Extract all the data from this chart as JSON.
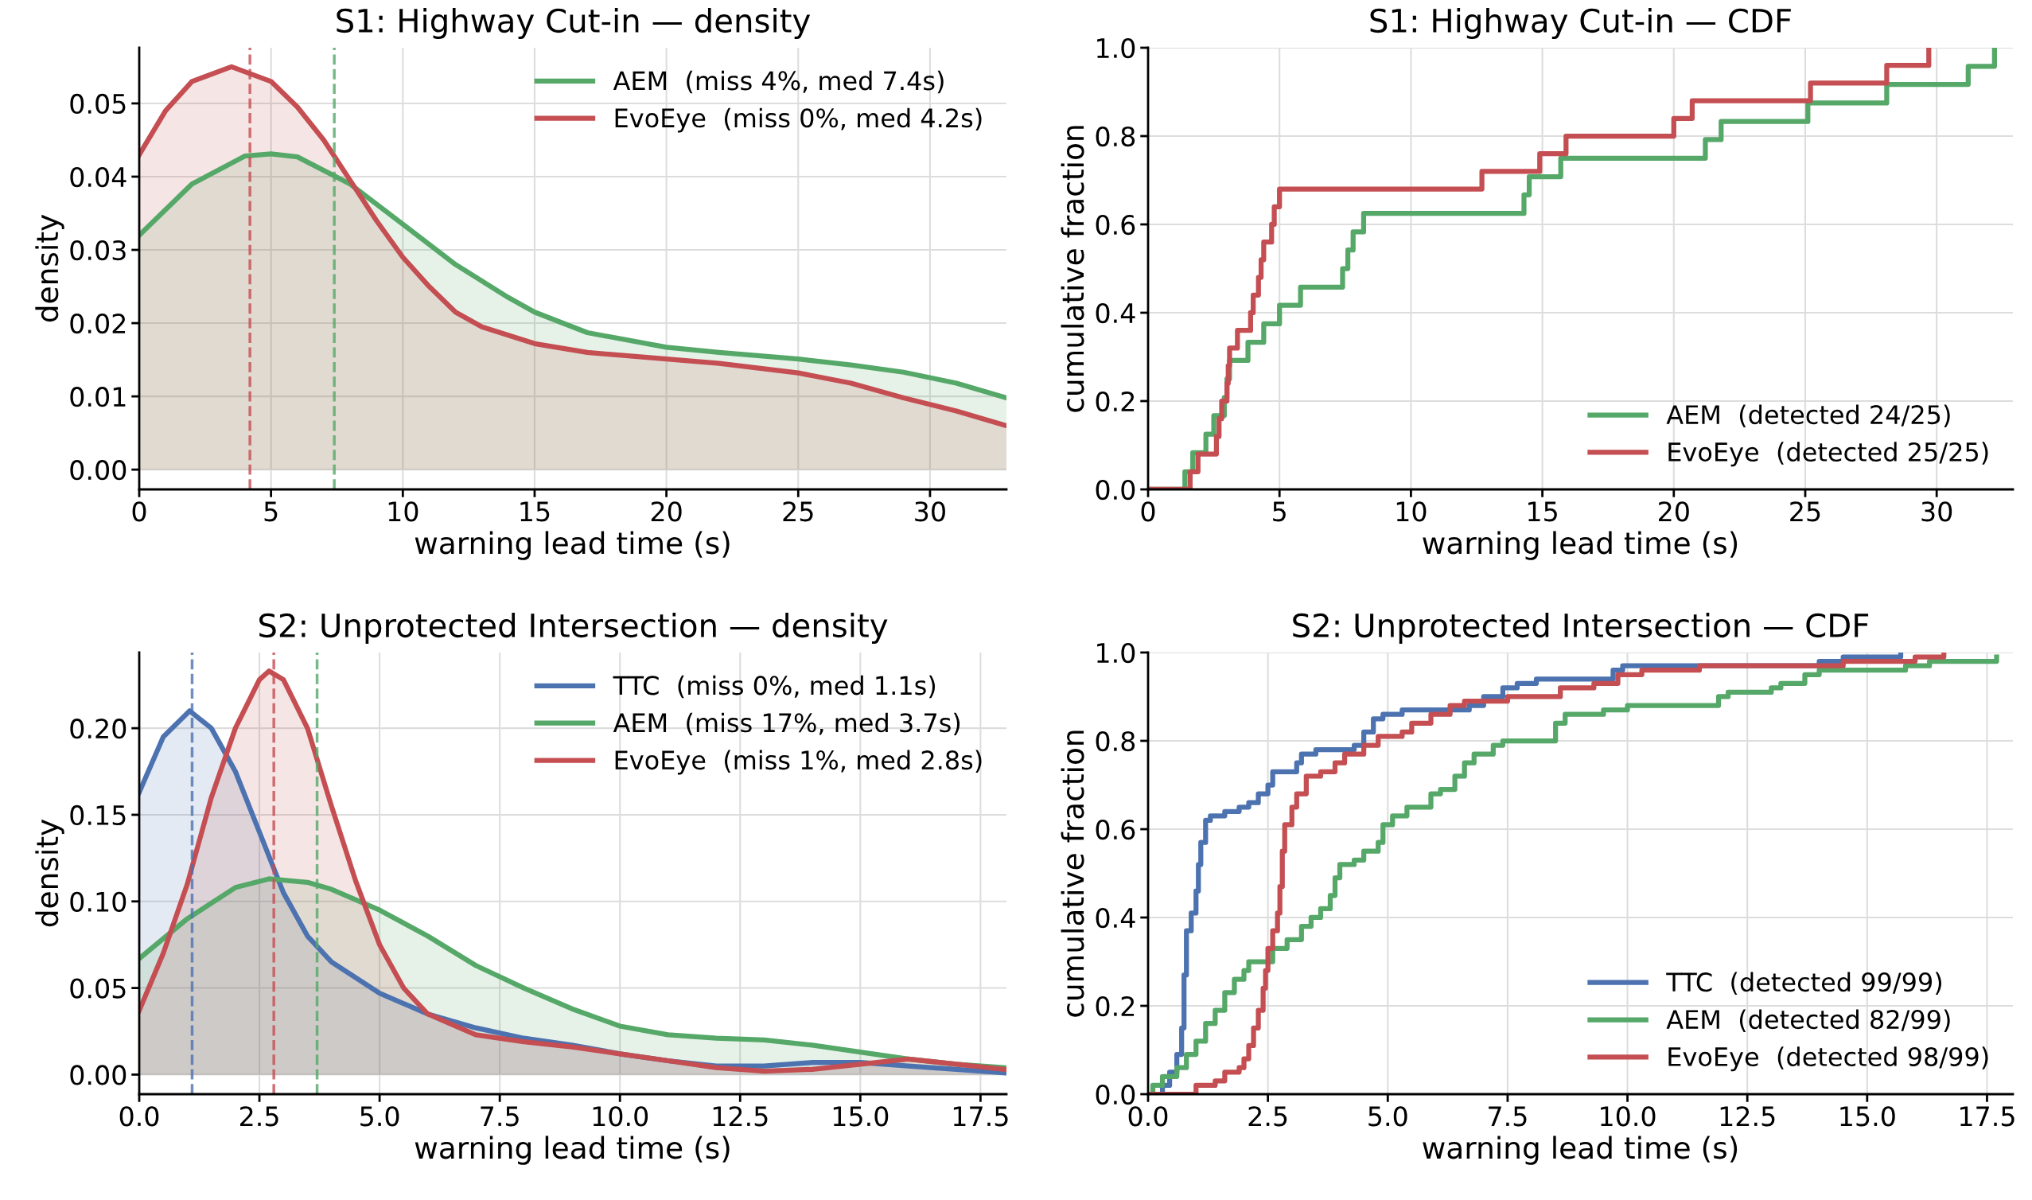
{
  "chart_data": [
    {
      "type": "area",
      "title": "S1: Highway Cut-in — density",
      "xlabel": "warning lead time (s)",
      "ylabel": "density",
      "xlim": [
        0,
        32.9
      ],
      "ylim": [
        -0.0027,
        0.0576
      ],
      "xticks": [
        0,
        5,
        10,
        15,
        20,
        25,
        30
      ],
      "yticks": [
        {
          "value": 0,
          "label": "0.00"
        },
        {
          "value": 0.01,
          "label": "0.01"
        },
        {
          "value": 0.02,
          "label": "0.02"
        },
        {
          "value": 0.03,
          "label": "0.03"
        },
        {
          "value": 0.04,
          "label": "0.04"
        },
        {
          "value": 0.05,
          "label": "0.05"
        }
      ],
      "grid": true,
      "legend": "top right",
      "series": [
        {
          "name": "AEM  (miss 4%, med 7.4s)",
          "color": "#55a868",
          "x": [
            0,
            2,
            4,
            5,
            6,
            8,
            10,
            12,
            14,
            15,
            17,
            20,
            22,
            25,
            27,
            29,
            31,
            32.9
          ],
          "values": [
            0.032,
            0.039,
            0.0428,
            0.0431,
            0.0427,
            0.039,
            0.0335,
            0.028,
            0.0235,
            0.0215,
            0.0187,
            0.0167,
            0.016,
            0.0151,
            0.0143,
            0.0133,
            0.0118,
            0.0098
          ]
        },
        {
          "name": "EvoEye  (miss 0%, med 4.2s)",
          "color": "#c44e52",
          "x": [
            0,
            1,
            2,
            3.5,
            5,
            6,
            7,
            8,
            9,
            10,
            11,
            12,
            13,
            15,
            17,
            20,
            22,
            25,
            27,
            29,
            31,
            32.9
          ],
          "values": [
            0.043,
            0.049,
            0.053,
            0.055,
            0.053,
            0.0495,
            0.045,
            0.0395,
            0.034,
            0.029,
            0.025,
            0.0215,
            0.0195,
            0.0172,
            0.016,
            0.0151,
            0.0145,
            0.0132,
            0.0118,
            0.0098,
            0.008,
            0.006
          ]
        }
      ],
      "ref_lines": [
        {
          "axis": "x",
          "value": 4.2,
          "color": "#c44e52",
          "line_style": "dashed"
        },
        {
          "axis": "x",
          "value": 7.4,
          "color": "#55a868",
          "line_style": "dashed"
        }
      ]
    },
    {
      "type": "step",
      "title": "S1: Highway Cut-in — CDF",
      "xlabel": "warning lead time (s)",
      "ylabel": "cumulative fraction",
      "xlim": [
        0,
        32.9
      ],
      "ylim": [
        0,
        1
      ],
      "xticks": [
        0,
        5,
        10,
        15,
        20,
        25,
        30
      ],
      "yticks": [
        {
          "value": 0,
          "label": "0.0"
        },
        {
          "value": 0.2,
          "label": "0.2"
        },
        {
          "value": 0.4,
          "label": "0.4"
        },
        {
          "value": 0.6,
          "label": "0.6"
        },
        {
          "value": 0.8,
          "label": "0.8"
        },
        {
          "value": 1,
          "label": "1.0"
        }
      ],
      "grid": true,
      "legend": "bottom right",
      "series": [
        {
          "name": "AEM  (detected 24/25)",
          "color": "#55a868",
          "x": [
            0,
            1.4,
            1.7,
            2.2,
            2.5,
            2.9,
            3.0,
            3.1,
            3.8,
            4.4,
            5.0,
            5.8,
            7.4,
            7.6,
            7.8,
            8.2,
            14.3,
            14.5,
            15.7,
            21.2,
            21.8,
            25.1,
            28.1,
            31.2,
            32.2
          ],
          "values": [
            0,
            0.04,
            0.083,
            0.125,
            0.167,
            0.208,
            0.25,
            0.292,
            0.333,
            0.375,
            0.417,
            0.458,
            0.5,
            0.542,
            0.583,
            0.625,
            0.667,
            0.708,
            0.75,
            0.792,
            0.833,
            0.875,
            0.917,
            0.958,
            1.0
          ]
        },
        {
          "name": "EvoEye  (detected 25/25)",
          "color": "#c44e52",
          "x": [
            0,
            1.6,
            1.9,
            2.6,
            2.7,
            2.8,
            3.0,
            3.05,
            3.1,
            3.4,
            3.9,
            4.0,
            4.2,
            4.3,
            4.4,
            4.7,
            4.8,
            5.0,
            12.7,
            14.9,
            15.9,
            20.0,
            20.7,
            25.2,
            28.1,
            29.7
          ],
          "values": [
            0,
            0.04,
            0.08,
            0.12,
            0.16,
            0.2,
            0.24,
            0.28,
            0.32,
            0.36,
            0.4,
            0.44,
            0.48,
            0.52,
            0.56,
            0.6,
            0.64,
            0.68,
            0.72,
            0.76,
            0.8,
            0.84,
            0.88,
            0.92,
            0.96,
            1.0
          ]
        }
      ]
    },
    {
      "type": "area",
      "title": "S2: Unprotected Intersection — density",
      "xlabel": "warning lead time (s)",
      "ylabel": "density",
      "xlim": [
        0,
        18.04
      ],
      "ylim": [
        -0.0113,
        0.2437
      ],
      "xticks": [
        {
          "value": 0,
          "label": "0.0"
        },
        {
          "value": 2.5,
          "label": "2.5"
        },
        {
          "value": 5,
          "label": "5.0"
        },
        {
          "value": 7.5,
          "label": "7.5"
        },
        {
          "value": 10,
          "label": "10.0"
        },
        {
          "value": 12.5,
          "label": "12.5"
        },
        {
          "value": 15,
          "label": "15.0"
        },
        {
          "value": 17.5,
          "label": "17.5"
        }
      ],
      "yticks": [
        {
          "value": 0,
          "label": "0.00"
        },
        {
          "value": 0.05,
          "label": "0.05"
        },
        {
          "value": 0.1,
          "label": "0.10"
        },
        {
          "value": 0.15,
          "label": "0.15"
        },
        {
          "value": 0.2,
          "label": "0.20"
        }
      ],
      "grid": true,
      "legend": "top right",
      "series": [
        {
          "name": "TTC  (miss 0%, med 1.1s)",
          "color": "#4c72b0",
          "x": [
            0,
            0.5,
            1.05,
            1.5,
            2,
            2.5,
            3,
            3.5,
            4,
            5,
            6,
            7,
            8,
            9,
            10,
            11,
            12,
            13,
            14,
            15,
            16,
            17,
            18
          ],
          "values": [
            0.163,
            0.195,
            0.21,
            0.2,
            0.175,
            0.14,
            0.105,
            0.08,
            0.065,
            0.047,
            0.035,
            0.027,
            0.021,
            0.017,
            0.012,
            0.008,
            0.005,
            0.005,
            0.007,
            0.007,
            0.005,
            0.003,
            0.001
          ]
        },
        {
          "name": "AEM  (miss 17%, med 3.7s)",
          "color": "#55a868",
          "x": [
            0,
            1,
            2,
            2.7,
            3.5,
            4,
            5,
            6,
            7,
            8,
            9,
            10,
            11,
            12,
            13,
            14,
            15,
            16,
            17,
            18
          ],
          "values": [
            0.067,
            0.09,
            0.108,
            0.113,
            0.111,
            0.107,
            0.095,
            0.08,
            0.063,
            0.05,
            0.038,
            0.028,
            0.023,
            0.021,
            0.02,
            0.017,
            0.013,
            0.009,
            0.006,
            0.004
          ]
        },
        {
          "name": "EvoEye  (miss 1%, med 2.8s)",
          "color": "#c44e52",
          "x": [
            0,
            0.5,
            1,
            1.5,
            2,
            2.5,
            2.7,
            3,
            3.5,
            4,
            4.5,
            5,
            5.5,
            6,
            7,
            8,
            9,
            10,
            11,
            12,
            13,
            14,
            15,
            16,
            17,
            18
          ],
          "values": [
            0.037,
            0.07,
            0.11,
            0.16,
            0.2,
            0.228,
            0.233,
            0.228,
            0.2,
            0.155,
            0.112,
            0.075,
            0.05,
            0.035,
            0.023,
            0.019,
            0.016,
            0.012,
            0.008,
            0.004,
            0.002,
            0.003,
            0.006,
            0.009,
            0.006,
            0.003
          ]
        }
      ],
      "ref_lines": [
        {
          "axis": "x",
          "value": 1.1,
          "color": "#4c72b0",
          "line_style": "dashed"
        },
        {
          "axis": "x",
          "value": 3.7,
          "color": "#55a868",
          "line_style": "dashed"
        },
        {
          "axis": "x",
          "value": 2.8,
          "color": "#c44e52",
          "line_style": "dashed"
        }
      ]
    },
    {
      "type": "step",
      "title": "S2: Unprotected Intersection — CDF",
      "xlabel": "warning lead time (s)",
      "ylabel": "cumulative fraction",
      "xlim": [
        0,
        18.04
      ],
      "ylim": [
        0,
        1
      ],
      "xticks": [
        {
          "value": 0,
          "label": "0.0"
        },
        {
          "value": 2.5,
          "label": "2.5"
        },
        {
          "value": 5,
          "label": "5.0"
        },
        {
          "value": 7.5,
          "label": "7.5"
        },
        {
          "value": 10,
          "label": "10.0"
        },
        {
          "value": 12.5,
          "label": "12.5"
        },
        {
          "value": 15,
          "label": "15.0"
        },
        {
          "value": 17.5,
          "label": "17.5"
        }
      ],
      "yticks": [
        {
          "value": 0,
          "label": "0.0"
        },
        {
          "value": 0.2,
          "label": "0.2"
        },
        {
          "value": 0.4,
          "label": "0.4"
        },
        {
          "value": 0.6,
          "label": "0.6"
        },
        {
          "value": 0.8,
          "label": "0.8"
        },
        {
          "value": 1,
          "label": "1.0"
        }
      ],
      "grid": true,
      "legend": "bottom right",
      "series": [
        {
          "name": "TTC  (detected 99/99)",
          "color": "#4c72b0",
          "x": [
            0.2,
            0.3,
            0.45,
            0.6,
            0.7,
            0.75,
            0.8,
            0.9,
            1.0,
            1.05,
            1.1,
            1.2,
            1.3,
            1.6,
            1.9,
            2.1,
            2.3,
            2.5,
            2.6,
            3.1,
            3.2,
            3.5,
            4.3,
            4.5,
            4.7,
            4.9,
            5.3,
            6.7,
            7.0,
            7.4,
            7.7,
            8.1,
            9.7,
            9.9,
            14.0,
            14.5,
            15.7
          ],
          "values": [
            0,
            0.02,
            0.05,
            0.09,
            0.15,
            0.27,
            0.37,
            0.41,
            0.46,
            0.52,
            0.57,
            0.62,
            0.63,
            0.64,
            0.65,
            0.66,
            0.68,
            0.7,
            0.73,
            0.75,
            0.77,
            0.78,
            0.79,
            0.82,
            0.85,
            0.86,
            0.87,
            0.88,
            0.9,
            0.92,
            0.93,
            0.94,
            0.96,
            0.97,
            0.98,
            0.99,
            1.0
          ]
        },
        {
          "name": "AEM  (detected 82/99)",
          "color": "#55a868",
          "x": [
            0,
            0.1,
            0.3,
            0.6,
            0.8,
            1.0,
            1.2,
            1.4,
            1.6,
            1.8,
            2.0,
            2.1,
            2.6,
            2.9,
            3.2,
            3.4,
            3.6,
            3.8,
            3.9,
            4.0,
            4.3,
            4.5,
            4.8,
            4.9,
            5.1,
            5.4,
            5.9,
            6.1,
            6.4,
            6.6,
            6.8,
            7.2,
            7.4,
            8.5,
            8.7,
            9.5,
            10.0,
            11.9,
            12.1,
            13.0,
            13.2,
            13.7,
            14.0,
            15.8,
            16.3,
            17.7
          ],
          "values": [
            0,
            0.02,
            0.04,
            0.06,
            0.09,
            0.12,
            0.16,
            0.19,
            0.23,
            0.26,
            0.28,
            0.3,
            0.33,
            0.35,
            0.38,
            0.4,
            0.42,
            0.45,
            0.49,
            0.52,
            0.53,
            0.55,
            0.57,
            0.61,
            0.63,
            0.65,
            0.68,
            0.69,
            0.72,
            0.75,
            0.77,
            0.79,
            0.8,
            0.84,
            0.86,
            0.87,
            0.88,
            0.9,
            0.91,
            0.92,
            0.93,
            0.95,
            0.96,
            0.97,
            0.98,
            0.99
          ]
        },
        {
          "name": "EvoEye  (detected 98/99)",
          "color": "#c44e52",
          "x": [
            0,
            0.9,
            1.0,
            1.4,
            1.6,
            1.9,
            2.0,
            2.1,
            2.2,
            2.3,
            2.4,
            2.45,
            2.5,
            2.6,
            2.7,
            2.75,
            2.8,
            2.85,
            3.0,
            3.1,
            3.3,
            3.6,
            3.9,
            4.1,
            4.5,
            4.8,
            5.3,
            5.5,
            5.9,
            6.3,
            6.6,
            7.5,
            8.6,
            9.3,
            9.8,
            10.3,
            11.5,
            14.5,
            16.0,
            16.6
          ],
          "values": [
            0,
            0,
            0.02,
            0.03,
            0.05,
            0.06,
            0.08,
            0.11,
            0.15,
            0.19,
            0.24,
            0.28,
            0.33,
            0.37,
            0.41,
            0.47,
            0.55,
            0.61,
            0.65,
            0.68,
            0.72,
            0.73,
            0.75,
            0.77,
            0.79,
            0.81,
            0.82,
            0.84,
            0.86,
            0.88,
            0.89,
            0.9,
            0.92,
            0.93,
            0.95,
            0.96,
            0.97,
            0.98,
            0.99,
            1.0
          ]
        }
      ]
    }
  ]
}
